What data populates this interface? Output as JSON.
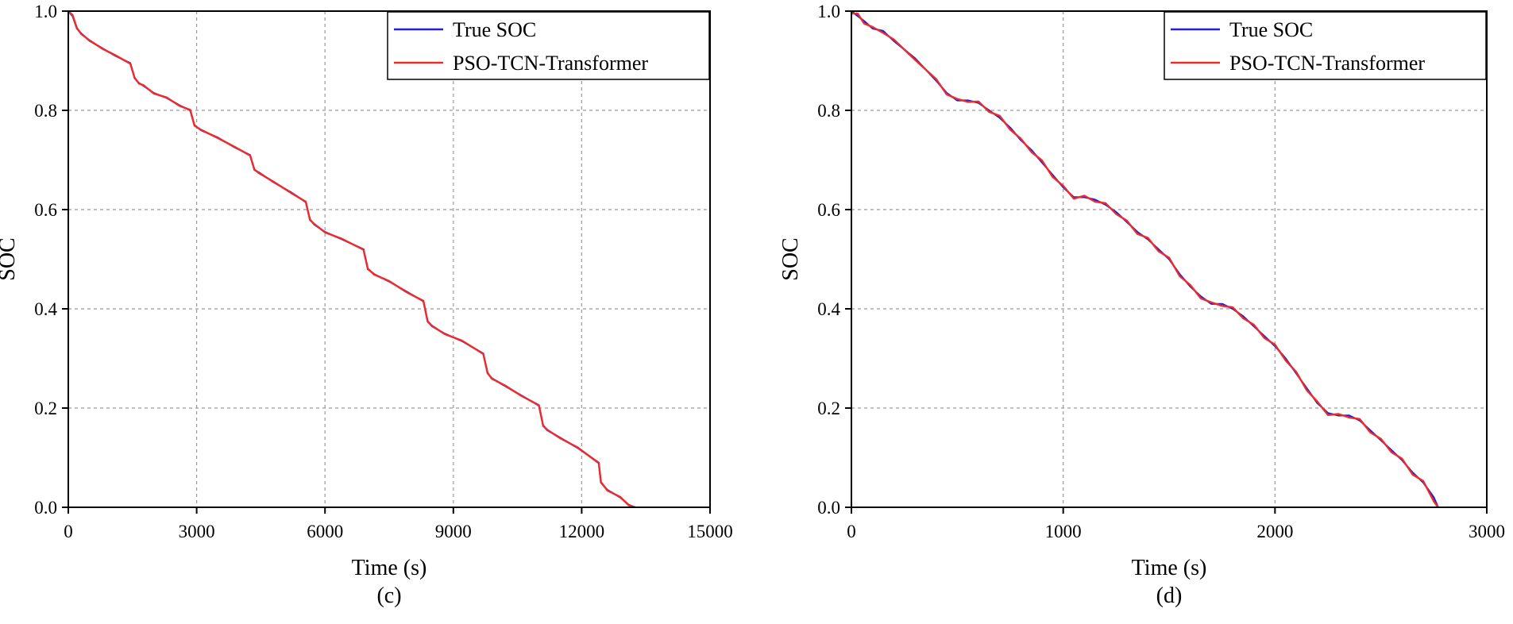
{
  "chart_data": [
    {
      "type": "line",
      "panel_label": "(c)",
      "xlabel": "Time (s)",
      "ylabel": "SOC",
      "xlim": [
        0,
        15000
      ],
      "ylim": [
        0,
        1.0
      ],
      "xticks": [
        "0",
        "3000",
        "6000",
        "9000",
        "12000",
        "15000"
      ],
      "yticks": [
        "0.0",
        "0.2",
        "0.4",
        "0.6",
        "0.8",
        "1.0"
      ],
      "grid": true,
      "legend_position": "top-right",
      "series": [
        {
          "name": "True SOC",
          "color": "#1f1fd6",
          "x": [
            0,
            100,
            200,
            300,
            500,
            800,
            1100,
            1450,
            1550,
            1650,
            1750,
            2000,
            2300,
            2600,
            2850,
            2950,
            3100,
            3500,
            3900,
            4250,
            4350,
            4450,
            4800,
            5200,
            5550,
            5650,
            5750,
            6000,
            6400,
            6900,
            7000,
            7150,
            7500,
            7900,
            8300,
            8400,
            8500,
            8800,
            9200,
            9700,
            9800,
            9900,
            10200,
            10600,
            11000,
            11100,
            11200,
            11500,
            11900,
            12400,
            12450,
            12600,
            12900,
            13100,
            13250
          ],
          "y": [
            1.0,
            0.99,
            0.965,
            0.955,
            0.94,
            0.925,
            0.91,
            0.895,
            0.865,
            0.855,
            0.85,
            0.835,
            0.825,
            0.81,
            0.8,
            0.77,
            0.76,
            0.745,
            0.725,
            0.71,
            0.68,
            0.675,
            0.655,
            0.635,
            0.615,
            0.58,
            0.57,
            0.555,
            0.54,
            0.52,
            0.48,
            0.47,
            0.455,
            0.435,
            0.415,
            0.375,
            0.365,
            0.35,
            0.335,
            0.31,
            0.27,
            0.26,
            0.245,
            0.225,
            0.205,
            0.165,
            0.155,
            0.14,
            0.12,
            0.09,
            0.05,
            0.035,
            0.02,
            0.005,
            0.0
          ]
        },
        {
          "name": "PSO-TCN-Transformer",
          "color": "#ee2b2b",
          "x": [
            0,
            100,
            200,
            300,
            500,
            800,
            1100,
            1450,
            1550,
            1650,
            1750,
            2000,
            2300,
            2600,
            2850,
            2950,
            3100,
            3500,
            3900,
            4250,
            4350,
            4450,
            4800,
            5200,
            5550,
            5650,
            5750,
            6000,
            6400,
            6900,
            7000,
            7150,
            7500,
            7900,
            8300,
            8400,
            8500,
            8800,
            9200,
            9700,
            9800,
            9900,
            10200,
            10600,
            11000,
            11100,
            11200,
            11500,
            11900,
            12400,
            12450,
            12600,
            12900,
            13100,
            13250
          ],
          "y": [
            1.0,
            0.992,
            0.966,
            0.954,
            0.941,
            0.924,
            0.911,
            0.894,
            0.866,
            0.854,
            0.851,
            0.834,
            0.826,
            0.809,
            0.801,
            0.769,
            0.761,
            0.744,
            0.726,
            0.709,
            0.681,
            0.674,
            0.656,
            0.634,
            0.616,
            0.579,
            0.571,
            0.554,
            0.541,
            0.519,
            0.481,
            0.469,
            0.456,
            0.434,
            0.416,
            0.374,
            0.366,
            0.349,
            0.336,
            0.309,
            0.271,
            0.259,
            0.246,
            0.224,
            0.206,
            0.164,
            0.156,
            0.139,
            0.121,
            0.089,
            0.051,
            0.034,
            0.021,
            0.004,
            0.0
          ]
        }
      ]
    },
    {
      "type": "line",
      "panel_label": "(d)",
      "xlabel": "Time (s)",
      "ylabel": "SOC",
      "xlim": [
        0,
        3000
      ],
      "ylim": [
        0,
        1.0
      ],
      "xticks": [
        "0",
        "1000",
        "2000",
        "3000"
      ],
      "yticks": [
        "0.0",
        "0.2",
        "0.4",
        "0.6",
        "0.8",
        "1.0"
      ],
      "grid": true,
      "legend_position": "top-right",
      "series": [
        {
          "name": "True SOC",
          "color": "#1f1fd6",
          "x": [
            0,
            30,
            60,
            100,
            150,
            200,
            300,
            400,
            450,
            500,
            550,
            600,
            650,
            700,
            750,
            800,
            850,
            900,
            950,
            1000,
            1050,
            1100,
            1150,
            1200,
            1250,
            1300,
            1350,
            1400,
            1450,
            1500,
            1550,
            1600,
            1650,
            1700,
            1750,
            1800,
            1850,
            1900,
            1950,
            2000,
            2050,
            2100,
            2150,
            2200,
            2250,
            2300,
            2350,
            2400,
            2450,
            2500,
            2550,
            2600,
            2650,
            2700,
            2750,
            2770
          ],
          "y": [
            1.0,
            0.99,
            0.98,
            0.965,
            0.96,
            0.94,
            0.905,
            0.86,
            0.835,
            0.82,
            0.82,
            0.815,
            0.8,
            0.785,
            0.765,
            0.74,
            0.72,
            0.695,
            0.67,
            0.645,
            0.625,
            0.625,
            0.62,
            0.61,
            0.595,
            0.575,
            0.555,
            0.54,
            0.52,
            0.5,
            0.47,
            0.445,
            0.425,
            0.41,
            0.41,
            0.4,
            0.385,
            0.365,
            0.345,
            0.325,
            0.3,
            0.27,
            0.24,
            0.21,
            0.19,
            0.185,
            0.185,
            0.175,
            0.155,
            0.135,
            0.115,
            0.095,
            0.07,
            0.05,
            0.02,
            0.0
          ]
        },
        {
          "name": "PSO-TCN-Transformer",
          "color": "#ee2b2b",
          "x": [
            0,
            30,
            60,
            100,
            150,
            200,
            300,
            400,
            450,
            500,
            550,
            600,
            650,
            700,
            750,
            800,
            850,
            900,
            950,
            1000,
            1050,
            1100,
            1150,
            1200,
            1250,
            1300,
            1350,
            1400,
            1450,
            1500,
            1550,
            1600,
            1650,
            1700,
            1750,
            1800,
            1850,
            1900,
            1950,
            2000,
            2050,
            2100,
            2150,
            2200,
            2250,
            2300,
            2350,
            2400,
            2450,
            2500,
            2550,
            2600,
            2650,
            2700,
            2750,
            2770
          ],
          "y": [
            0.995,
            0.995,
            0.975,
            0.968,
            0.956,
            0.943,
            0.902,
            0.863,
            0.832,
            0.823,
            0.817,
            0.818,
            0.797,
            0.789,
            0.761,
            0.743,
            0.716,
            0.699,
            0.666,
            0.648,
            0.622,
            0.628,
            0.616,
            0.613,
            0.591,
            0.578,
            0.551,
            0.543,
            0.516,
            0.503,
            0.466,
            0.448,
            0.421,
            0.413,
            0.406,
            0.403,
            0.381,
            0.368,
            0.341,
            0.328,
            0.296,
            0.273,
            0.236,
            0.213,
            0.186,
            0.188,
            0.181,
            0.178,
            0.151,
            0.138,
            0.111,
            0.098,
            0.066,
            0.053,
            0.012,
            0.0
          ]
        }
      ]
    }
  ]
}
